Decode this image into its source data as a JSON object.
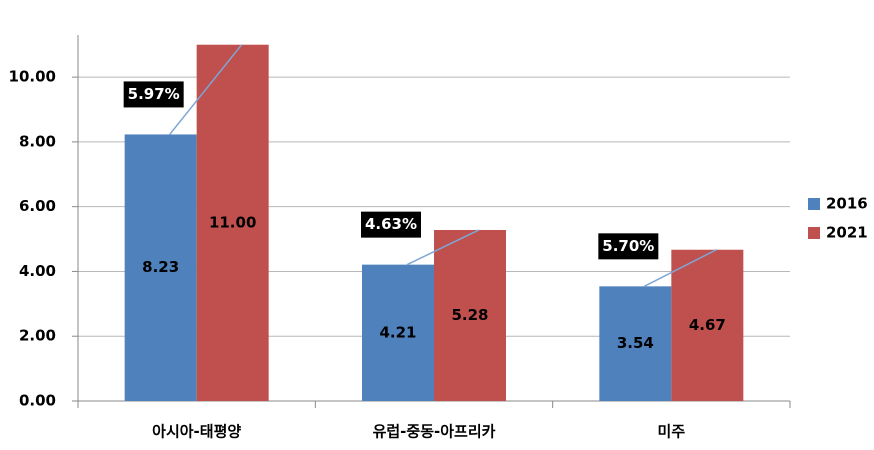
{
  "chart_data": {
    "type": "bar",
    "categories": [
      "아시아-태평양",
      "유럽-중동-아프리카",
      "미주"
    ],
    "series": [
      {
        "name": "2016",
        "color": "#4f81bd",
        "values": [
          8.23,
          4.21,
          3.54
        ]
      },
      {
        "name": "2021",
        "color": "#c0504d",
        "values": [
          11.0,
          5.28,
          4.67
        ],
        "value_labels": [
          "11.00",
          "5.28",
          "4.67"
        ]
      }
    ],
    "growth_labels": [
      "5.97%",
      "4.63%",
      "5.70%"
    ],
    "ylim": [
      0,
      11.3
    ],
    "yticks": [
      {
        "value": 0,
        "label": "0.00"
      },
      {
        "value": 2,
        "label": "2.00"
      },
      {
        "value": 4,
        "label": "4.00"
      },
      {
        "value": 6,
        "label": "6.00"
      },
      {
        "value": 8,
        "label": "8.00"
      },
      {
        "value": 10,
        "label": "10.00"
      }
    ],
    "grid": true,
    "legend": "right"
  }
}
